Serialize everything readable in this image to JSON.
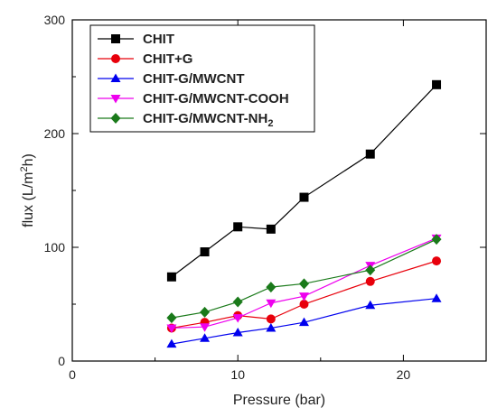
{
  "chart_data": {
    "type": "line",
    "xlabel": "Pressure (bar)",
    "ylabel": {
      "prefix": "flux  (L/m",
      "sup": "2",
      "suffix": "h)"
    },
    "xlim": [
      0,
      25
    ],
    "ylim": [
      0,
      300
    ],
    "x_ticks": [
      0,
      10,
      20
    ],
    "y_ticks": [
      0,
      100,
      200,
      300
    ],
    "grid": false,
    "legend_position": "top-left",
    "series": [
      {
        "name": "CHIT",
        "marker": "square",
        "color": "#000000",
        "x": [
          6,
          8,
          10,
          12,
          14,
          18,
          22
        ],
        "y": [
          74,
          96,
          118,
          116,
          144,
          182,
          243
        ]
      },
      {
        "name": "CHIT+G",
        "marker": "circle",
        "color": "#e8000b",
        "x": [
          6,
          8,
          10,
          12,
          14,
          18,
          22
        ],
        "y": [
          29,
          34,
          40,
          37,
          50,
          70,
          88
        ]
      },
      {
        "name": "CHIT-G/MWCNT",
        "marker": "triangle-up",
        "color": "#0000ee",
        "x": [
          6,
          8,
          10,
          12,
          14,
          18,
          22
        ],
        "y": [
          15,
          20,
          25,
          29,
          34,
          49,
          55
        ]
      },
      {
        "name": "CHIT-G/MWCNT-COOH",
        "marker": "triangle-down",
        "color": "#ee00ee",
        "x": [
          6,
          8,
          10,
          12,
          14,
          18,
          22
        ],
        "y": [
          29,
          30,
          38,
          51,
          57,
          84,
          108
        ]
      },
      {
        "name": "CHIT-G/MWCNT-NH",
        "name_sub": "2",
        "marker": "diamond",
        "color": "#1a7a1a",
        "x": [
          6,
          8,
          10,
          12,
          14,
          18,
          22
        ],
        "y": [
          38,
          43,
          52,
          65,
          68,
          80,
          107
        ]
      }
    ]
  }
}
